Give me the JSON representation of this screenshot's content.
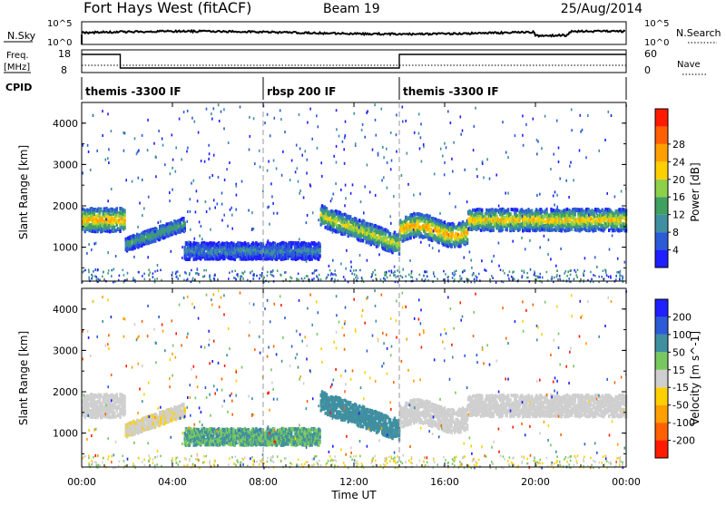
{
  "header": {
    "station": "Fort Hays West (fitACF)",
    "beam": "Beam 19",
    "date": "25/Aug/2014"
  },
  "top_panels": {
    "nsky_label": "N.Sky",
    "nsky_ticks": [
      "10^5",
      "10^0"
    ],
    "nsearch_label": "N.Search",
    "nsearch_ticks": [
      "10^5",
      "10^0"
    ],
    "freq_label": "Freq.",
    "freq_unit": "[MHz]",
    "freq_ticks": [
      "18",
      "8"
    ],
    "nave_label": "Nave",
    "nave_ticks": [
      "60",
      "0"
    ],
    "cpid_label": "CPID",
    "cpid_segments": [
      {
        "label": "themis -3300 IF",
        "start_h": 0,
        "end_h": 8
      },
      {
        "label": "rbsp 200 IF",
        "start_h": 8,
        "end_h": 14
      },
      {
        "label": "themis -3300 IF",
        "start_h": 14,
        "end_h": 24
      }
    ]
  },
  "axes": {
    "xlabel": "Time UT",
    "xticks": [
      "00:00",
      "04:00",
      "08:00",
      "12:00",
      "16:00",
      "20:00",
      "00:00"
    ],
    "xlim_h": [
      0,
      24
    ],
    "ylabel": "Slant Range [km]",
    "yticks": [
      "1000",
      "2000",
      "3000",
      "4000"
    ],
    "ylim_km": [
      180,
      4500
    ]
  },
  "power_colorbar": {
    "label": "Power [dB]",
    "ticks": [
      "4",
      "8",
      "12",
      "16",
      "20",
      "24",
      "28"
    ],
    "colors": [
      "#1f1fff",
      "#2b5bd6",
      "#3f8fa0",
      "#3fa060",
      "#8fd04a",
      "#ffd000",
      "#ffa000",
      "#ff6000",
      "#ff1a00"
    ]
  },
  "velocity_colorbar": {
    "label": "Velocity [m s^-1]",
    "ticks": [
      "200",
      "100",
      "50",
      "15",
      "-15",
      "-50",
      "-100",
      "-200"
    ],
    "colors": [
      "#1f1fff",
      "#2b5bd6",
      "#3f8fa0",
      "#78c860",
      "#cfcfcf",
      "#ffd000",
      "#ffa000",
      "#ff6000",
      "#ff1a00"
    ]
  },
  "chart_data": {
    "type": "heatmap",
    "x_unit": "hours UT",
    "y_unit": "km",
    "scatter_bands": [
      {
        "start_h": 0.0,
        "end_h": 1.9,
        "center_km": 1700,
        "halfwidth_km": 280,
        "power_db": 22,
        "velocity": 0
      },
      {
        "start_h": 1.9,
        "end_h": 4.5,
        "center_km": 1150,
        "halfwidth_km": 160,
        "power_db": 12,
        "velocity": -10
      },
      {
        "start_h": 4.5,
        "end_h": 10.5,
        "center_km": 950,
        "halfwidth_km": 200,
        "power_db": 8,
        "velocity": 30
      },
      {
        "start_h": 10.5,
        "end_h": 14.0,
        "center_km": 1400,
        "halfwidth_km": 250,
        "power_db": 18,
        "velocity": 40
      },
      {
        "start_h": 14.0,
        "end_h": 17.0,
        "center_km": 1500,
        "halfwidth_km": 280,
        "power_db": 22,
        "velocity": 0
      },
      {
        "start_h": 17.0,
        "end_h": 24.0,
        "center_km": 1700,
        "halfwidth_km": 260,
        "power_db": 20,
        "velocity": 0
      }
    ],
    "freq_steps_mhz": [
      {
        "start_h": 0.0,
        "end_h": 1.7,
        "value": 16
      },
      {
        "start_h": 1.7,
        "end_h": 14.0,
        "value": 10
      },
      {
        "start_h": 14.0,
        "end_h": 24.0,
        "value": 16
      }
    ]
  }
}
